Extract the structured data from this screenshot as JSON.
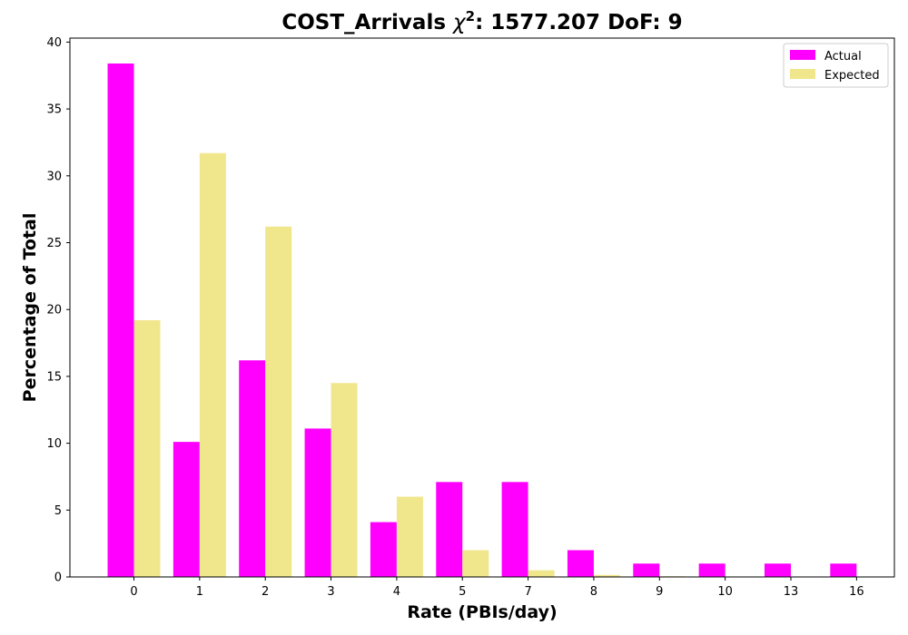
{
  "chart_data": {
    "type": "bar",
    "title_prefix": "COST_Arrivals ",
    "title_chi": "χ",
    "title_sup": "2",
    "title_suffix": ": 1577.207 DoF: 9",
    "xlabel": "Rate (PBIs/day)",
    "ylabel": "Percentage of Total",
    "categories": [
      "0",
      "1",
      "2",
      "3",
      "4",
      "5",
      "7",
      "8",
      "9",
      "10",
      "13",
      "16"
    ],
    "series": [
      {
        "name": "Actual",
        "color": "#ff00ff",
        "values": [
          38.4,
          10.1,
          16.2,
          11.1,
          4.1,
          7.1,
          7.1,
          2.0,
          1.0,
          1.0,
          1.0,
          1.0
        ]
      },
      {
        "name": "Expected",
        "color": "#f0e68c",
        "values": [
          19.2,
          31.7,
          26.2,
          14.5,
          6.0,
          2.0,
          0.5,
          0.15,
          0.05,
          0.0,
          0.0,
          0.0
        ]
      }
    ],
    "ylim": [
      0,
      40.3
    ],
    "yticks": [
      "0",
      "5",
      "10",
      "15",
      "20",
      "25",
      "30",
      "35",
      "40"
    ],
    "legend_position": "top-right",
    "grid": false
  }
}
